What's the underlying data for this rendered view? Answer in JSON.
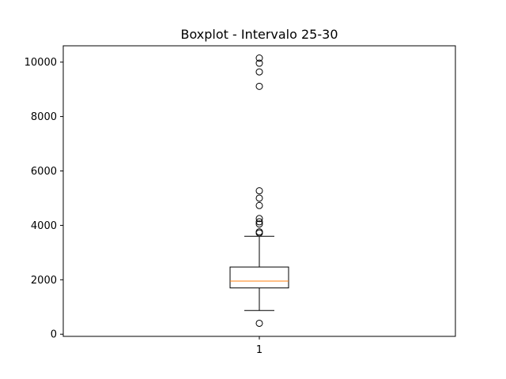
{
  "chart_data": {
    "type": "boxplot",
    "title": "Boxplot - Intervalo 25-30",
    "xlabel": "",
    "ylabel": "",
    "categories": [
      "1"
    ],
    "ylim": [
      -80,
      10600
    ],
    "yticks": [
      0,
      2000,
      4000,
      6000,
      8000,
      10000
    ],
    "ytick_labels": [
      "0",
      "2000",
      "4000",
      "6000",
      "8000",
      "10000"
    ],
    "grid": false,
    "box": {
      "whisker_low": 870,
      "q1": 1700,
      "median": 1950,
      "q3": 2470,
      "whisker_high": 3600
    },
    "outliers": [
      400,
      3720,
      3760,
      4050,
      4130,
      4250,
      4730,
      5000,
      5270,
      9110,
      9640,
      9960,
      10150
    ],
    "colors": {
      "box": "#000000",
      "median": "#ff7f0e",
      "outlier_edge": "#000000"
    }
  }
}
